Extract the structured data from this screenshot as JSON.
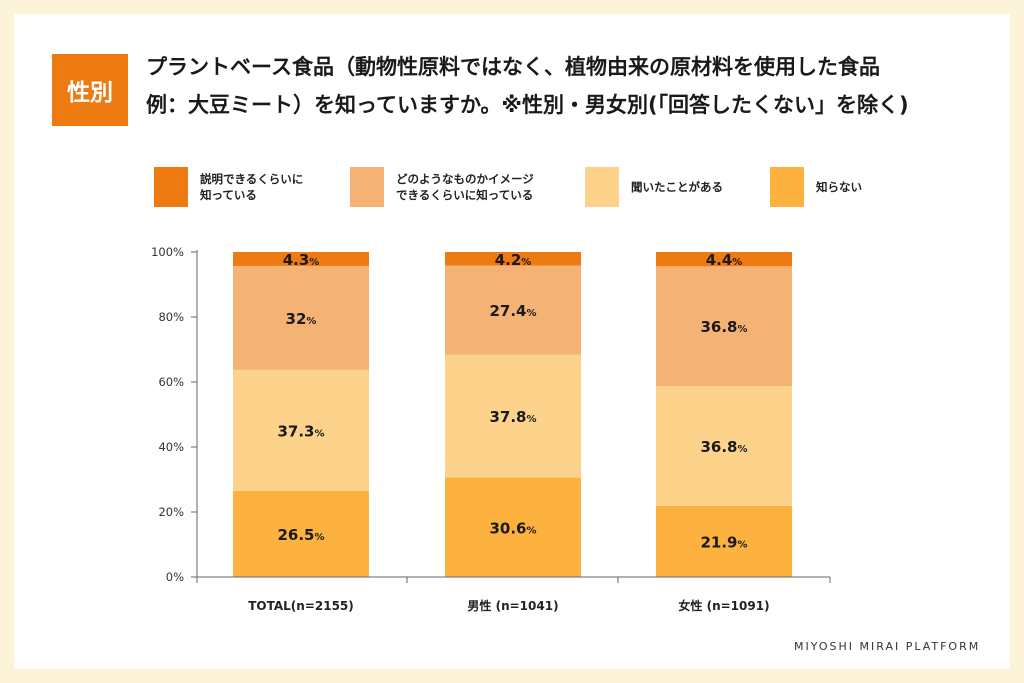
{
  "badge": "性別",
  "title": {
    "line1": "プラントベース食品（動物性原料ではなく、植物由来の原材料を使用した食品",
    "line2": "例：大豆ミート）を知っていますか。※性別・男女別(「回答したくない」を除く)"
  },
  "footer": "MIYOSHI MIRAI PLATFORM",
  "colors": {
    "background": "#fdf3d8",
    "badge": "#ee7a12",
    "series": [
      "#ee7a12",
      "#f5b275",
      "#fdd38c",
      "#fdb23f"
    ]
  },
  "chart_data": {
    "type": "bar",
    "stacked": true,
    "categories": [
      "TOTAL(n=2155)",
      "男性 (n=1041)",
      "女性 (n=1091)"
    ],
    "series": [
      {
        "name": "説明できるくらいに知っている",
        "legend_lines": [
          "説明できるくらいに",
          "知っている"
        ],
        "values": [
          4.3,
          4.2,
          4.4
        ],
        "labels": [
          "4.3",
          "4.2",
          "4.4"
        ]
      },
      {
        "name": "どのようなものかイメージできるくらいに知っている",
        "legend_lines": [
          "どのようなものかイメージ",
          "できるくらいに知っている"
        ],
        "values": [
          32,
          27.4,
          36.8
        ],
        "labels": [
          "32",
          "27.4",
          "36.8"
        ]
      },
      {
        "name": "聞いたことがある",
        "legend_lines": [
          "聞いたことがある"
        ],
        "values": [
          37.3,
          37.8,
          36.8
        ],
        "labels": [
          "37.3",
          "37.8",
          "36.8"
        ]
      },
      {
        "name": "知らない",
        "legend_lines": [
          "知らない"
        ],
        "values": [
          26.5,
          30.6,
          21.9
        ],
        "labels": [
          "26.5",
          "30.6",
          "21.9"
        ]
      }
    ],
    "y_ticks": [
      "0%",
      "20%",
      "40%",
      "60%",
      "80%",
      "100%"
    ],
    "ylim": [
      0,
      100
    ],
    "unit": "%",
    "legend_position": "top"
  }
}
